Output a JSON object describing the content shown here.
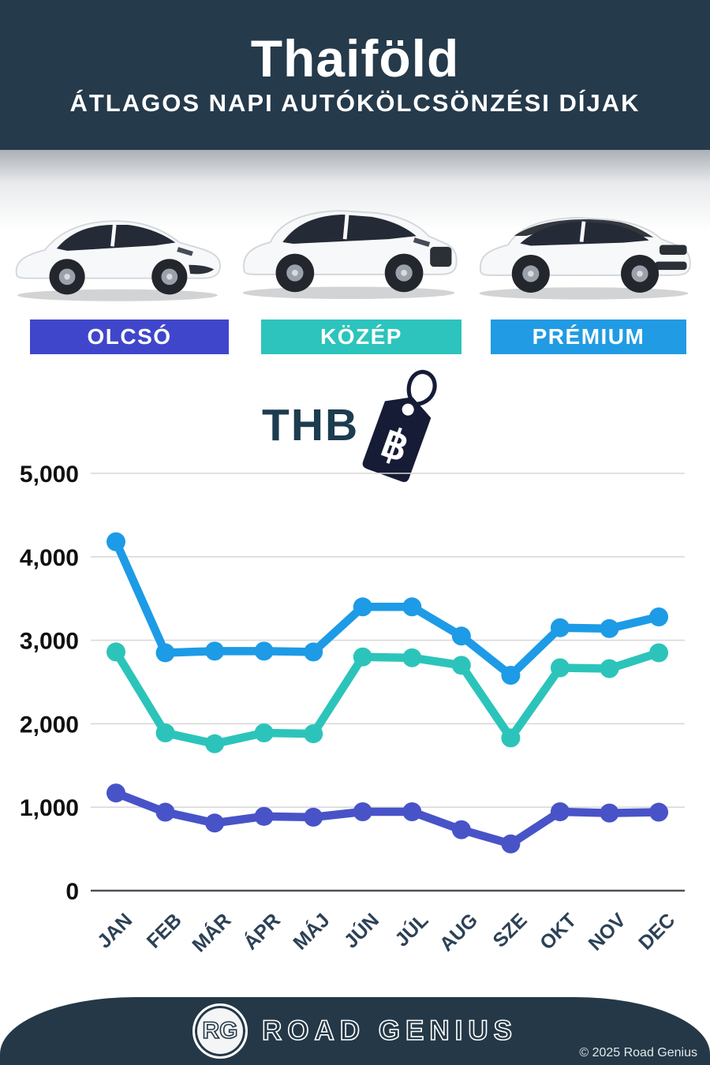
{
  "header": {
    "title": "Thaiföld",
    "subtitle": "ÁTLAGOS NAPI AUTÓKÖLCSÖNZÉSI DÍJAK"
  },
  "categories": [
    {
      "label": "OLCSÓ",
      "color": "#4046cb"
    },
    {
      "label": "KÖZÉP",
      "color": "#2cc4bc"
    },
    {
      "label": "PRÉMIUM",
      "color": "#219be4"
    }
  ],
  "currency": {
    "code": "THB",
    "symbol": "฿"
  },
  "chart_data": {
    "type": "line",
    "title": "Thaiföld — Átlagos napi autókölcsönzési díjak (THB)",
    "ylabel": "THB",
    "ylim": [
      0,
      5000
    ],
    "yticks": [
      0,
      1000,
      2000,
      3000,
      4000,
      5000
    ],
    "ytick_labels": [
      "0",
      "1,000",
      "2,000",
      "3,000",
      "4,000",
      "5,000"
    ],
    "grid": true,
    "legend_position": "badges-above-chart",
    "categories": [
      "JAN",
      "FEB",
      "MÁR",
      "ÁPR",
      "MÁJ",
      "JÚN",
      "JÚL",
      "AUG",
      "SZE",
      "OKT",
      "NOV",
      "DEC"
    ],
    "series": [
      {
        "name": "PRÉMIUM",
        "color": "#1d9be6",
        "values": [
          4180,
          2850,
          2870,
          2870,
          2860,
          3400,
          3400,
          3050,
          2580,
          3150,
          3140,
          3280
        ]
      },
      {
        "name": "KÖZÉP",
        "color": "#2cc4ba",
        "values": [
          2860,
          1890,
          1760,
          1890,
          1880,
          2800,
          2790,
          2700,
          1830,
          2670,
          2660,
          2850
        ]
      },
      {
        "name": "OLCSÓ",
        "color": "#4853c8",
        "values": [
          1170,
          940,
          810,
          890,
          880,
          945,
          945,
          730,
          560,
          945,
          930,
          940
        ]
      }
    ]
  },
  "footer": {
    "logo_initials": "RG",
    "brand": "ROAD GENIUS",
    "copyright": "© 2025 Road Genius"
  }
}
